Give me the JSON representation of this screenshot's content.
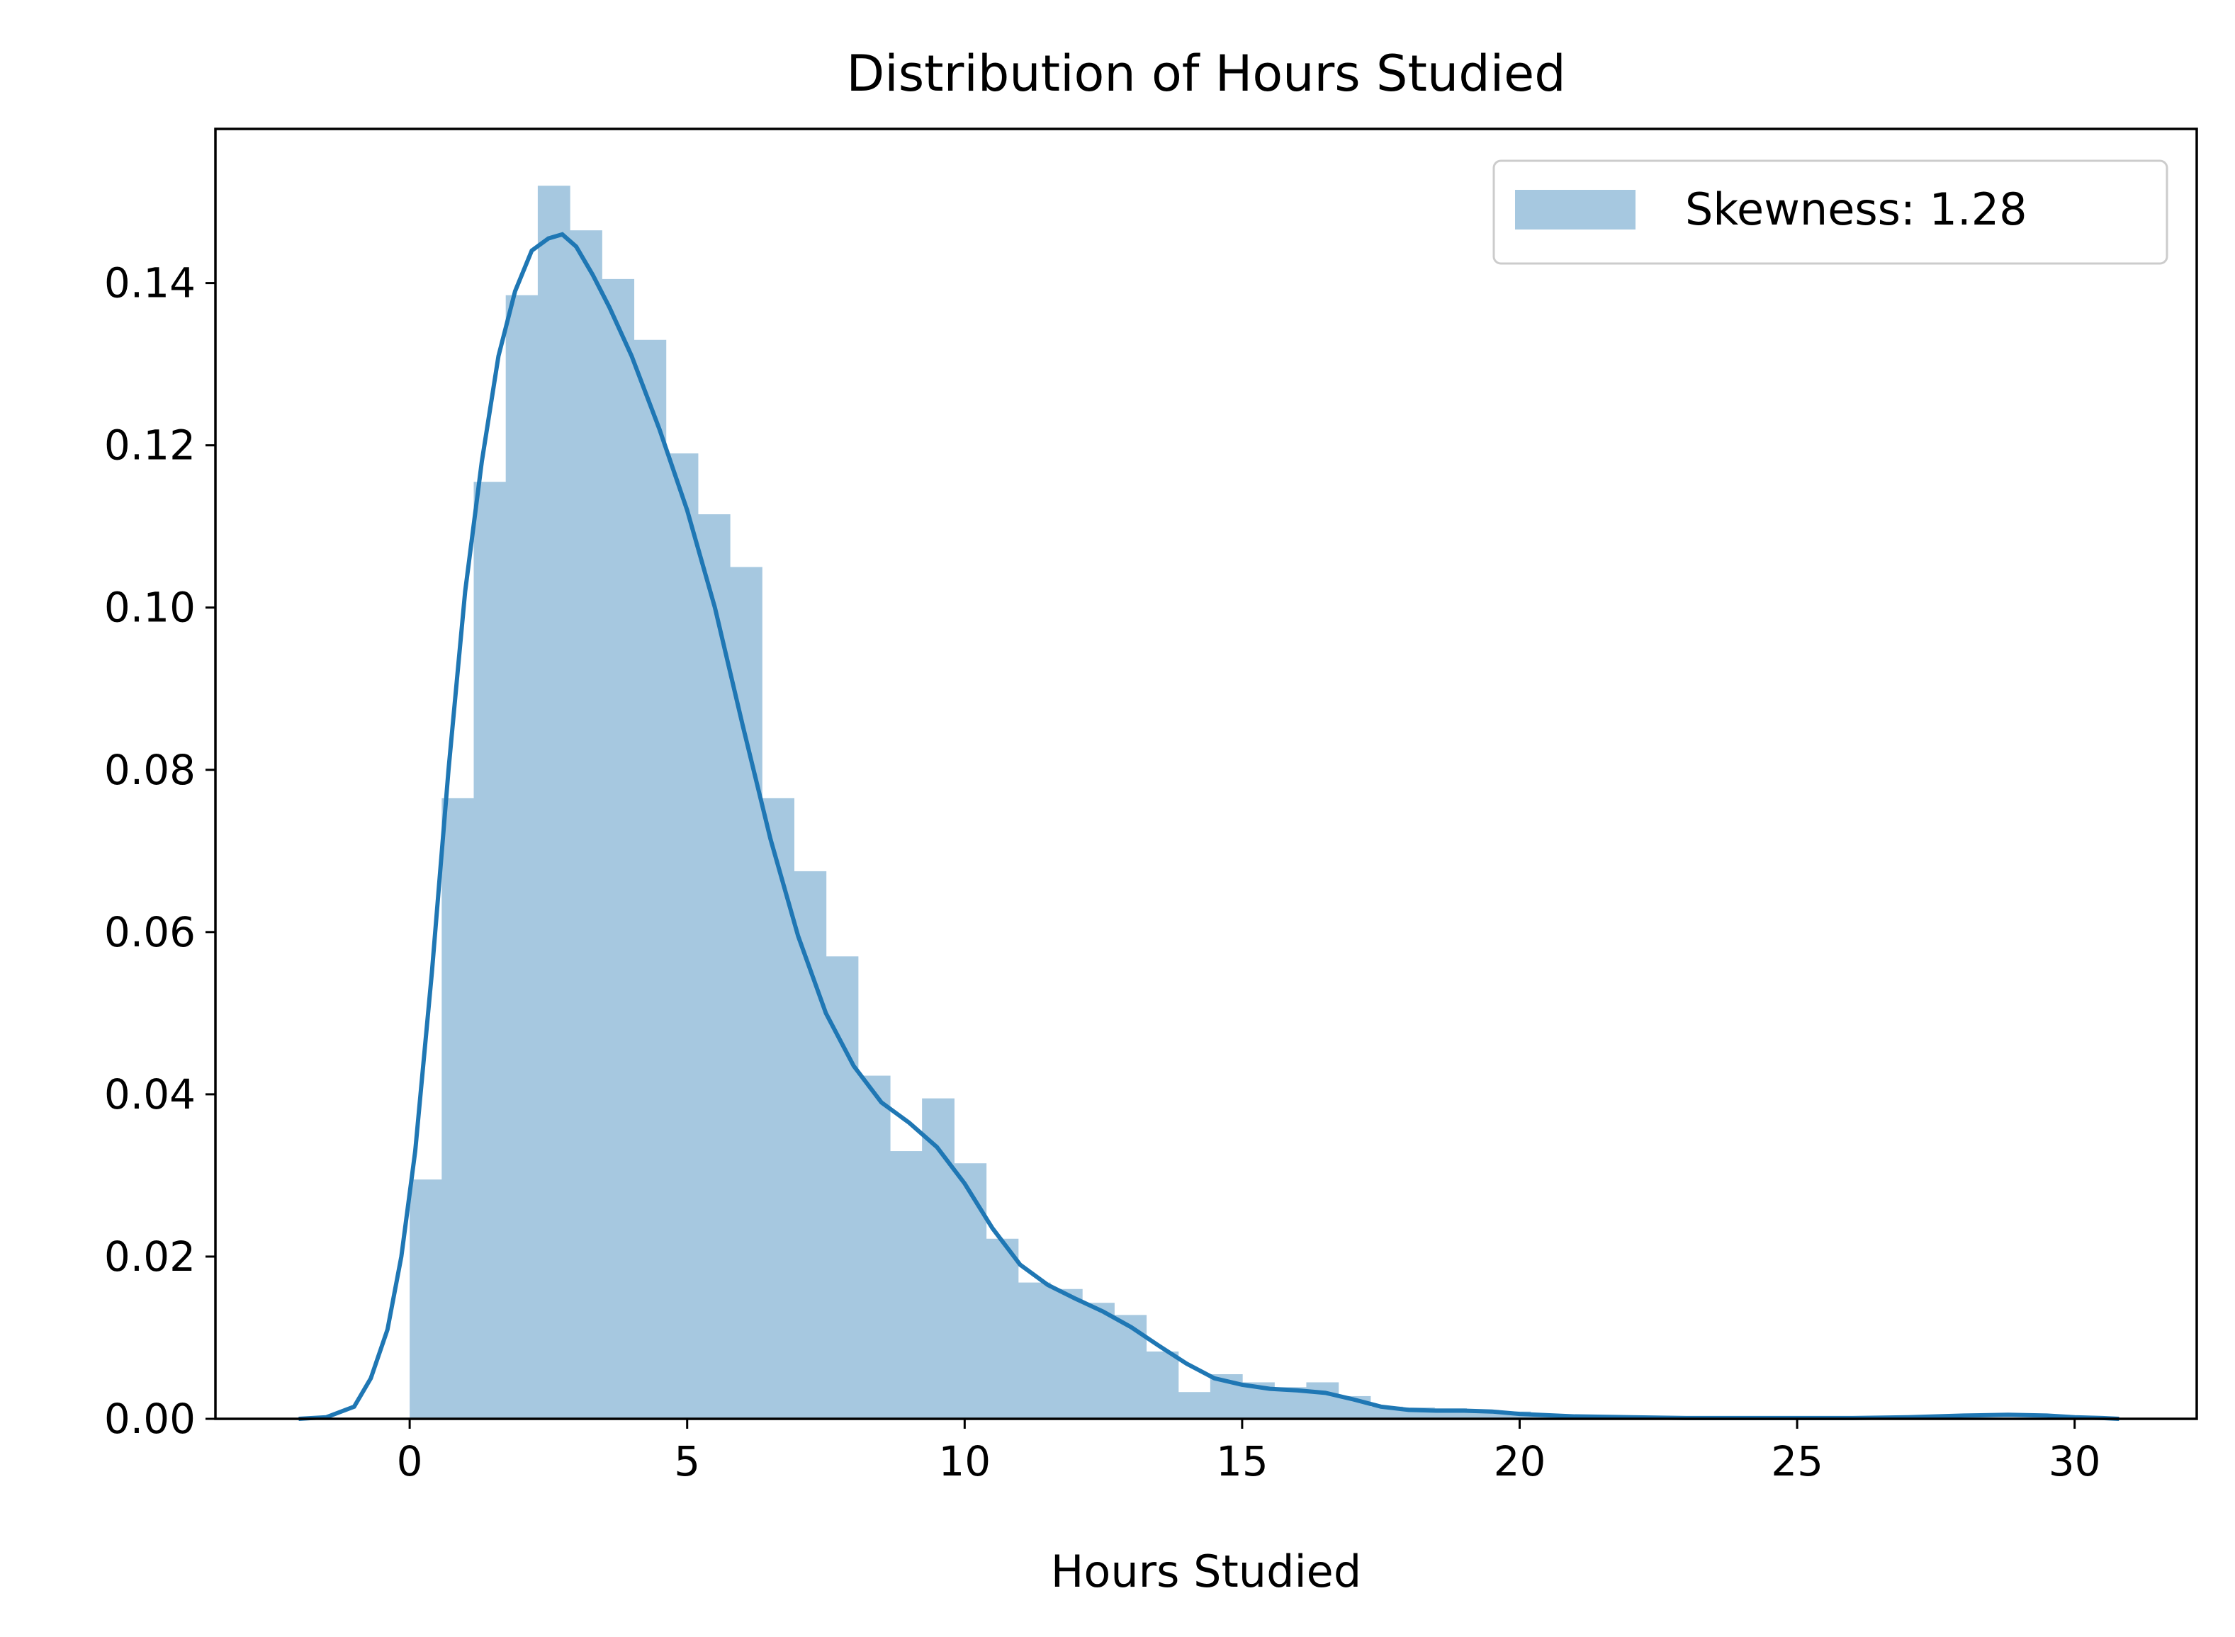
{
  "chart_data": {
    "type": "histogram",
    "title": "Distribution of Hours Studied",
    "xlabel": "Hours Studied",
    "ylabel": "",
    "xlim": [
      -3.5,
      32.2
    ],
    "ylim": [
      0,
      0.159
    ],
    "x_ticks": [
      0,
      5,
      10,
      15,
      20,
      25,
      30
    ],
    "x_tick_labels": [
      "0",
      "5",
      "10",
      "15",
      "20",
      "25",
      "30"
    ],
    "y_ticks": [
      0,
      0.02,
      0.04,
      0.06,
      0.08,
      0.1,
      0.12,
      0.14
    ],
    "y_tick_labels": [
      "0.00",
      "0.02",
      "0.04",
      "0.06",
      "0.08",
      "0.10",
      "0.12",
      "0.14"
    ],
    "grid": false,
    "legend": {
      "position": "upper right",
      "entries": [
        {
          "label": "Skewness: 1.28"
        }
      ]
    },
    "colors": {
      "bars": "#a6c8e0",
      "kde": "#1f77b4"
    },
    "bars": {
      "bin_start": 0.0,
      "bin_width": 0.577,
      "heights": [
        0.0295,
        0.0765,
        0.1155,
        0.1385,
        0.152,
        0.1465,
        0.1405,
        0.133,
        0.119,
        0.1115,
        0.105,
        0.0765,
        0.0675,
        0.057,
        0.0423,
        0.033,
        0.0395,
        0.0315,
        0.0222,
        0.0168,
        0.016,
        0.0143,
        0.0128,
        0.0083,
        0.0033,
        0.0055,
        0.0045,
        0.0039,
        0.0045,
        0.0028,
        0.0015,
        0.0014,
        0.0013,
        0.0011,
        0.0009,
        0.0006,
        0.0004,
        0.0003,
        0.0002,
        0.0002,
        0.0002,
        0.0001,
        0.0001,
        0.0001,
        0.0001,
        0.0001,
        0.0001,
        0.0001,
        0.0001,
        0.0001,
        0.0001
      ]
    },
    "kde": {
      "name": "",
      "x": [
        -2.0,
        -1.5,
        -1.0,
        -0.7,
        -0.4,
        -0.15,
        0.1,
        0.4,
        0.7,
        1.0,
        1.3,
        1.6,
        1.9,
        2.2,
        2.5,
        2.75,
        3.0,
        3.3,
        3.6,
        4.0,
        4.5,
        5.0,
        5.5,
        6.0,
        6.5,
        7.0,
        7.5,
        8.0,
        8.5,
        9.0,
        9.5,
        10.0,
        10.5,
        11.0,
        11.5,
        12.0,
        12.5,
        13.0,
        13.5,
        14.0,
        14.5,
        15.0,
        15.5,
        16.0,
        16.5,
        17.0,
        17.5,
        18.0,
        18.5,
        19.0,
        19.5,
        20.0,
        21.0,
        22.0,
        23.0,
        24.0,
        25.0,
        26.0,
        27.0,
        28.0,
        28.8,
        29.5,
        30.0,
        30.5,
        30.8
      ],
      "y": [
        0.0,
        0.0002,
        0.0015,
        0.005,
        0.011,
        0.02,
        0.033,
        0.055,
        0.08,
        0.102,
        0.118,
        0.131,
        0.139,
        0.144,
        0.1455,
        0.146,
        0.1445,
        0.141,
        0.137,
        0.131,
        0.122,
        0.112,
        0.1,
        0.0855,
        0.0715,
        0.0595,
        0.05,
        0.0435,
        0.039,
        0.0365,
        0.0335,
        0.029,
        0.0235,
        0.019,
        0.0165,
        0.0148,
        0.0132,
        0.0113,
        0.009,
        0.0068,
        0.005,
        0.0042,
        0.0037,
        0.0035,
        0.0032,
        0.0024,
        0.0015,
        0.0011,
        0.001,
        0.001,
        0.0009,
        0.0006,
        0.0003,
        0.0002,
        0.0001,
        0.0001,
        0.0001,
        0.0001,
        0.0002,
        0.0004,
        0.0005,
        0.0004,
        0.0002,
        0.0001,
        0.0
      ]
    }
  }
}
